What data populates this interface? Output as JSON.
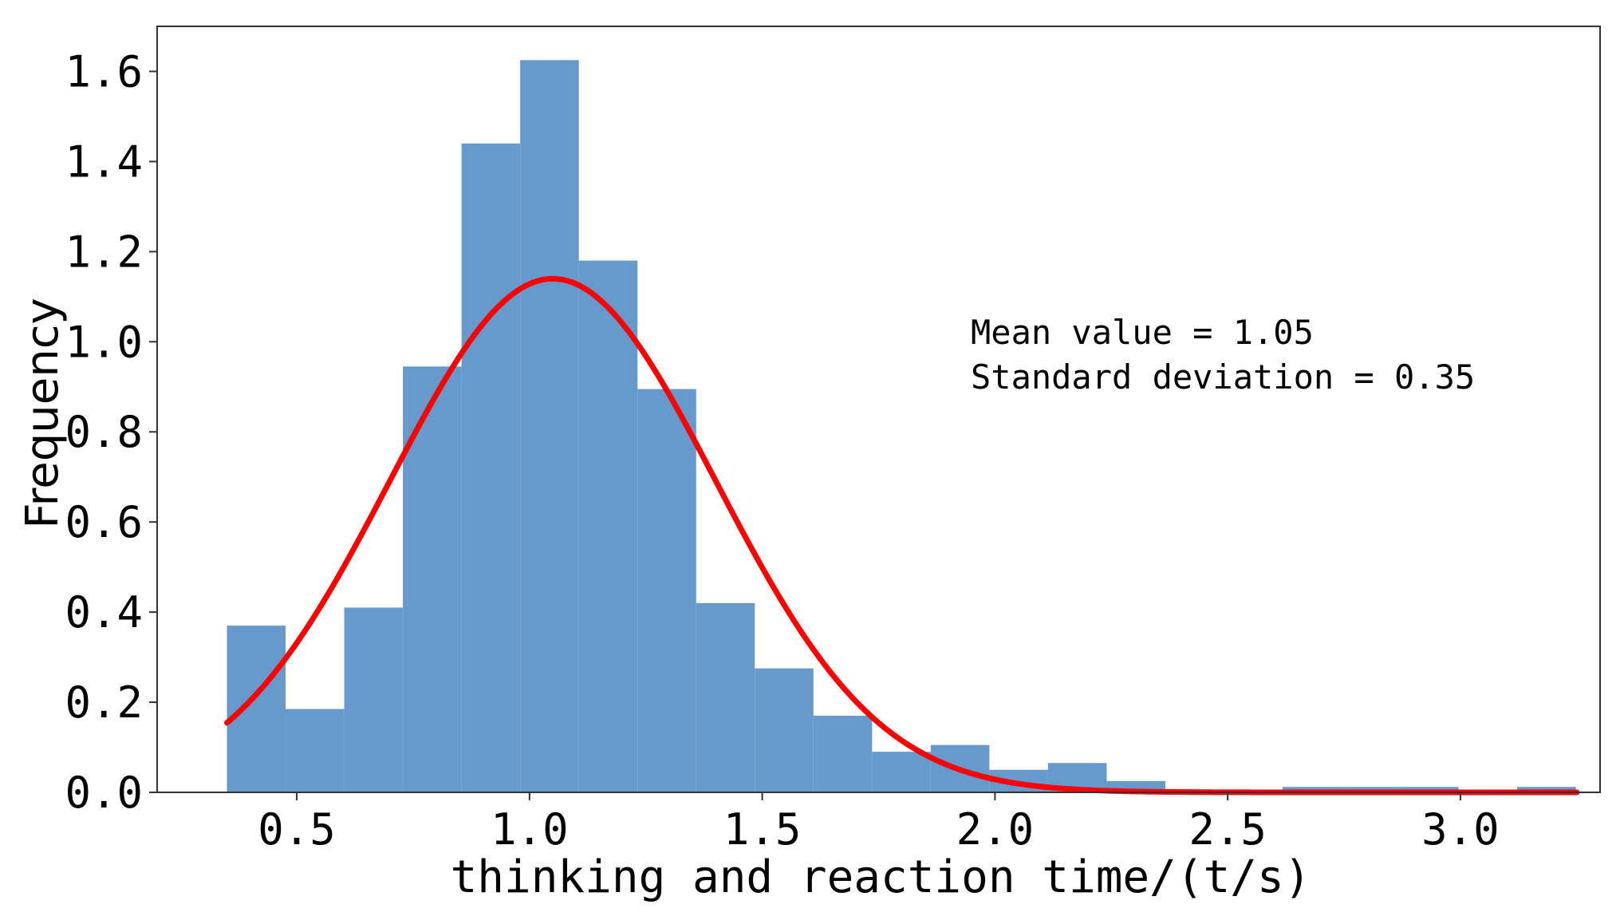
{
  "chart_data": {
    "type": "bar",
    "xlabel": "thinking and reaction time/(t/s)",
    "ylabel": "Frequency",
    "xlim": [
      0.2,
      3.3
    ],
    "ylim": [
      0.0,
      1.7
    ],
    "xticks": [
      {
        "value": 0.5,
        "label": "0.5"
      },
      {
        "value": 1.0,
        "label": "1.0"
      },
      {
        "value": 1.5,
        "label": "1.5"
      },
      {
        "value": 2.0,
        "label": "2.0"
      },
      {
        "value": 2.5,
        "label": "2.5"
      },
      {
        "value": 3.0,
        "label": "3.0"
      }
    ],
    "yticks": [
      {
        "value": 0.0,
        "label": "0.0"
      },
      {
        "value": 0.2,
        "label": "0.2"
      },
      {
        "value": 0.4,
        "label": "0.4"
      },
      {
        "value": 0.6,
        "label": "0.6"
      },
      {
        "value": 0.8,
        "label": "0.8"
      },
      {
        "value": 1.0,
        "label": "1.0"
      },
      {
        "value": 1.2,
        "label": "1.2"
      },
      {
        "value": 1.4,
        "label": "1.4"
      },
      {
        "value": 1.6,
        "label": "1.6"
      }
    ],
    "bins": [
      {
        "x0": 0.35,
        "x1": 0.476,
        "value": 0.37
      },
      {
        "x0": 0.476,
        "x1": 0.602,
        "value": 0.185
      },
      {
        "x0": 0.602,
        "x1": 0.728,
        "value": 0.41
      },
      {
        "x0": 0.728,
        "x1": 0.854,
        "value": 0.945
      },
      {
        "x0": 0.854,
        "x1": 0.98,
        "value": 1.44
      },
      {
        "x0": 0.98,
        "x1": 1.106,
        "value": 1.625
      },
      {
        "x0": 1.106,
        "x1": 1.232,
        "value": 1.18
      },
      {
        "x0": 1.232,
        "x1": 1.358,
        "value": 0.895
      },
      {
        "x0": 1.358,
        "x1": 1.484,
        "value": 0.42
      },
      {
        "x0": 1.484,
        "x1": 1.61,
        "value": 0.275
      },
      {
        "x0": 1.61,
        "x1": 1.736,
        "value": 0.17
      },
      {
        "x0": 1.736,
        "x1": 1.862,
        "value": 0.09
      },
      {
        "x0": 1.862,
        "x1": 1.988,
        "value": 0.105
      },
      {
        "x0": 1.988,
        "x1": 2.114,
        "value": 0.05
      },
      {
        "x0": 2.114,
        "x1": 2.24,
        "value": 0.065
      },
      {
        "x0": 2.24,
        "x1": 2.366,
        "value": 0.025
      },
      {
        "x0": 2.366,
        "x1": 2.492,
        "value": 0.0
      },
      {
        "x0": 2.492,
        "x1": 2.618,
        "value": 0.0
      },
      {
        "x0": 2.618,
        "x1": 2.744,
        "value": 0.012
      },
      {
        "x0": 2.744,
        "x1": 2.87,
        "value": 0.012
      },
      {
        "x0": 2.87,
        "x1": 2.996,
        "value": 0.012
      },
      {
        "x0": 2.996,
        "x1": 3.122,
        "value": 0.0
      },
      {
        "x0": 3.122,
        "x1": 3.248,
        "value": 0.012
      }
    ],
    "bar_color": "#6699cc",
    "fit_curve": {
      "type": "normal",
      "mean": 1.05,
      "std": 0.35,
      "x_range": [
        0.35,
        3.25
      ],
      "color": "#ff0000"
    },
    "annotations": [
      "Mean value = 1.05",
      "Standard deviation = 0.35"
    ],
    "grid": false,
    "legend": "none"
  }
}
